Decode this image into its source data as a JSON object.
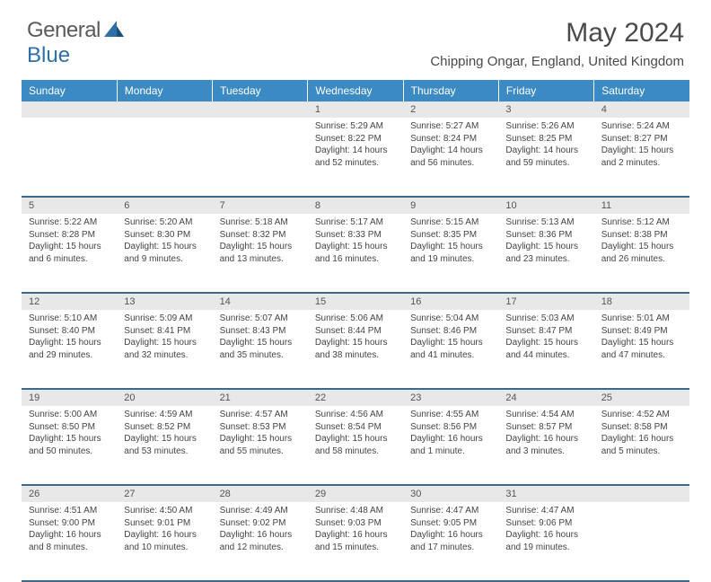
{
  "logo": {
    "text1": "General",
    "text2": "Blue"
  },
  "title": "May 2024",
  "location": "Chipping Ongar, England, United Kingdom",
  "day_headers": [
    "Sunday",
    "Monday",
    "Tuesday",
    "Wednesday",
    "Thursday",
    "Friday",
    "Saturday"
  ],
  "colors": {
    "header_bg": "#3b8ac4",
    "header_text": "#ffffff",
    "daynum_bg": "#e8e8e8",
    "border": "#3b6a8c",
    "text": "#444444",
    "logo_gray": "#5a5a5a",
    "logo_blue": "#2f6fa8"
  },
  "weeks": [
    [
      null,
      null,
      null,
      {
        "n": "1",
        "sr": "Sunrise: 5:29 AM",
        "ss": "Sunset: 8:22 PM",
        "dl1": "Daylight: 14 hours",
        "dl2": "and 52 minutes."
      },
      {
        "n": "2",
        "sr": "Sunrise: 5:27 AM",
        "ss": "Sunset: 8:24 PM",
        "dl1": "Daylight: 14 hours",
        "dl2": "and 56 minutes."
      },
      {
        "n": "3",
        "sr": "Sunrise: 5:26 AM",
        "ss": "Sunset: 8:25 PM",
        "dl1": "Daylight: 14 hours",
        "dl2": "and 59 minutes."
      },
      {
        "n": "4",
        "sr": "Sunrise: 5:24 AM",
        "ss": "Sunset: 8:27 PM",
        "dl1": "Daylight: 15 hours",
        "dl2": "and 2 minutes."
      }
    ],
    [
      {
        "n": "5",
        "sr": "Sunrise: 5:22 AM",
        "ss": "Sunset: 8:28 PM",
        "dl1": "Daylight: 15 hours",
        "dl2": "and 6 minutes."
      },
      {
        "n": "6",
        "sr": "Sunrise: 5:20 AM",
        "ss": "Sunset: 8:30 PM",
        "dl1": "Daylight: 15 hours",
        "dl2": "and 9 minutes."
      },
      {
        "n": "7",
        "sr": "Sunrise: 5:18 AM",
        "ss": "Sunset: 8:32 PM",
        "dl1": "Daylight: 15 hours",
        "dl2": "and 13 minutes."
      },
      {
        "n": "8",
        "sr": "Sunrise: 5:17 AM",
        "ss": "Sunset: 8:33 PM",
        "dl1": "Daylight: 15 hours",
        "dl2": "and 16 minutes."
      },
      {
        "n": "9",
        "sr": "Sunrise: 5:15 AM",
        "ss": "Sunset: 8:35 PM",
        "dl1": "Daylight: 15 hours",
        "dl2": "and 19 minutes."
      },
      {
        "n": "10",
        "sr": "Sunrise: 5:13 AM",
        "ss": "Sunset: 8:36 PM",
        "dl1": "Daylight: 15 hours",
        "dl2": "and 23 minutes."
      },
      {
        "n": "11",
        "sr": "Sunrise: 5:12 AM",
        "ss": "Sunset: 8:38 PM",
        "dl1": "Daylight: 15 hours",
        "dl2": "and 26 minutes."
      }
    ],
    [
      {
        "n": "12",
        "sr": "Sunrise: 5:10 AM",
        "ss": "Sunset: 8:40 PM",
        "dl1": "Daylight: 15 hours",
        "dl2": "and 29 minutes."
      },
      {
        "n": "13",
        "sr": "Sunrise: 5:09 AM",
        "ss": "Sunset: 8:41 PM",
        "dl1": "Daylight: 15 hours",
        "dl2": "and 32 minutes."
      },
      {
        "n": "14",
        "sr": "Sunrise: 5:07 AM",
        "ss": "Sunset: 8:43 PM",
        "dl1": "Daylight: 15 hours",
        "dl2": "and 35 minutes."
      },
      {
        "n": "15",
        "sr": "Sunrise: 5:06 AM",
        "ss": "Sunset: 8:44 PM",
        "dl1": "Daylight: 15 hours",
        "dl2": "and 38 minutes."
      },
      {
        "n": "16",
        "sr": "Sunrise: 5:04 AM",
        "ss": "Sunset: 8:46 PM",
        "dl1": "Daylight: 15 hours",
        "dl2": "and 41 minutes."
      },
      {
        "n": "17",
        "sr": "Sunrise: 5:03 AM",
        "ss": "Sunset: 8:47 PM",
        "dl1": "Daylight: 15 hours",
        "dl2": "and 44 minutes."
      },
      {
        "n": "18",
        "sr": "Sunrise: 5:01 AM",
        "ss": "Sunset: 8:49 PM",
        "dl1": "Daylight: 15 hours",
        "dl2": "and 47 minutes."
      }
    ],
    [
      {
        "n": "19",
        "sr": "Sunrise: 5:00 AM",
        "ss": "Sunset: 8:50 PM",
        "dl1": "Daylight: 15 hours",
        "dl2": "and 50 minutes."
      },
      {
        "n": "20",
        "sr": "Sunrise: 4:59 AM",
        "ss": "Sunset: 8:52 PM",
        "dl1": "Daylight: 15 hours",
        "dl2": "and 53 minutes."
      },
      {
        "n": "21",
        "sr": "Sunrise: 4:57 AM",
        "ss": "Sunset: 8:53 PM",
        "dl1": "Daylight: 15 hours",
        "dl2": "and 55 minutes."
      },
      {
        "n": "22",
        "sr": "Sunrise: 4:56 AM",
        "ss": "Sunset: 8:54 PM",
        "dl1": "Daylight: 15 hours",
        "dl2": "and 58 minutes."
      },
      {
        "n": "23",
        "sr": "Sunrise: 4:55 AM",
        "ss": "Sunset: 8:56 PM",
        "dl1": "Daylight: 16 hours",
        "dl2": "and 1 minute."
      },
      {
        "n": "24",
        "sr": "Sunrise: 4:54 AM",
        "ss": "Sunset: 8:57 PM",
        "dl1": "Daylight: 16 hours",
        "dl2": "and 3 minutes."
      },
      {
        "n": "25",
        "sr": "Sunrise: 4:52 AM",
        "ss": "Sunset: 8:58 PM",
        "dl1": "Daylight: 16 hours",
        "dl2": "and 5 minutes."
      }
    ],
    [
      {
        "n": "26",
        "sr": "Sunrise: 4:51 AM",
        "ss": "Sunset: 9:00 PM",
        "dl1": "Daylight: 16 hours",
        "dl2": "and 8 minutes."
      },
      {
        "n": "27",
        "sr": "Sunrise: 4:50 AM",
        "ss": "Sunset: 9:01 PM",
        "dl1": "Daylight: 16 hours",
        "dl2": "and 10 minutes."
      },
      {
        "n": "28",
        "sr": "Sunrise: 4:49 AM",
        "ss": "Sunset: 9:02 PM",
        "dl1": "Daylight: 16 hours",
        "dl2": "and 12 minutes."
      },
      {
        "n": "29",
        "sr": "Sunrise: 4:48 AM",
        "ss": "Sunset: 9:03 PM",
        "dl1": "Daylight: 16 hours",
        "dl2": "and 15 minutes."
      },
      {
        "n": "30",
        "sr": "Sunrise: 4:47 AM",
        "ss": "Sunset: 9:05 PM",
        "dl1": "Daylight: 16 hours",
        "dl2": "and 17 minutes."
      },
      {
        "n": "31",
        "sr": "Sunrise: 4:47 AM",
        "ss": "Sunset: 9:06 PM",
        "dl1": "Daylight: 16 hours",
        "dl2": "and 19 minutes."
      },
      null
    ]
  ]
}
